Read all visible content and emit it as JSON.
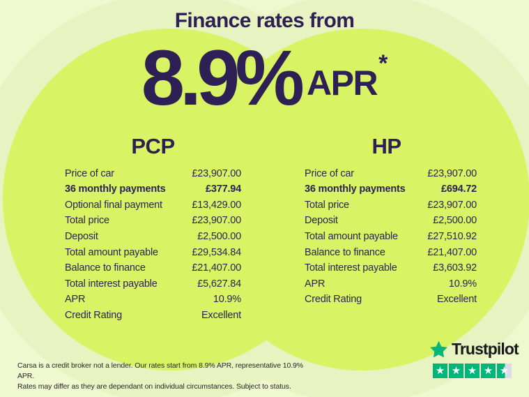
{
  "header": {
    "title": "Finance rates from",
    "rate": "8.9%",
    "rate_unit": "APR",
    "rate_asterisk": "*"
  },
  "columns": [
    {
      "title": "PCP",
      "rows": [
        {
          "label": "Price of car",
          "value": "£23,907.00",
          "bold": false
        },
        {
          "label": "36 monthly payments",
          "value": "£377.94",
          "bold": true
        },
        {
          "label": "Optional final payment",
          "value": "£13,429.00",
          "bold": false
        },
        {
          "label": "Total price",
          "value": "£23,907.00",
          "bold": false
        },
        {
          "label": "Deposit",
          "value": "£2,500.00",
          "bold": false
        },
        {
          "label": "Total amount payable",
          "value": "£29,534.84",
          "bold": false
        },
        {
          "label": "Balance to finance",
          "value": "£21,407.00",
          "bold": false
        },
        {
          "label": "Total interest payable",
          "value": "£5,627.84",
          "bold": false
        },
        {
          "label": "APR",
          "value": "10.9%",
          "bold": false
        },
        {
          "label": "Credit Rating",
          "value": "Excellent",
          "bold": false
        }
      ]
    },
    {
      "title": "HP",
      "rows": [
        {
          "label": "Price of car",
          "value": "£23,907.00",
          "bold": false
        },
        {
          "label": "36 monthly payments",
          "value": "£694.72",
          "bold": true
        },
        {
          "label": "Total price",
          "value": "£23,907.00",
          "bold": false
        },
        {
          "label": "Deposit",
          "value": "£2,500.00",
          "bold": false
        },
        {
          "label": "Total amount payable",
          "value": "£27,510.92",
          "bold": false
        },
        {
          "label": "Balance to finance",
          "value": "£21,407.00",
          "bold": false
        },
        {
          "label": "Total interest payable",
          "value": "£3,603.92",
          "bold": false
        },
        {
          "label": "APR",
          "value": "10.9%",
          "bold": false
        },
        {
          "label": "Credit Rating",
          "value": "Excellent",
          "bold": false
        }
      ]
    }
  ],
  "disclaimer": {
    "line1": "Carsa is a credit broker not a lender. Our rates start from 8.9% APR, representative 10.9% APR.",
    "line2": "Rates may differ as they are dependant on individual circumstances. Subject to status."
  },
  "trustpilot": {
    "brand": "Trustpilot",
    "rating": 4.5,
    "max_stars": 5
  },
  "colors": {
    "background": "#eff8cf",
    "halo": "#e7f3c0",
    "circle_green": "#d8f363",
    "accent_purple": "#2e2055",
    "disclaimer_text": "#262626",
    "trustpilot_green": "#00b67a",
    "trustpilot_text": "#191919",
    "star_empty": "#dcdce6"
  }
}
